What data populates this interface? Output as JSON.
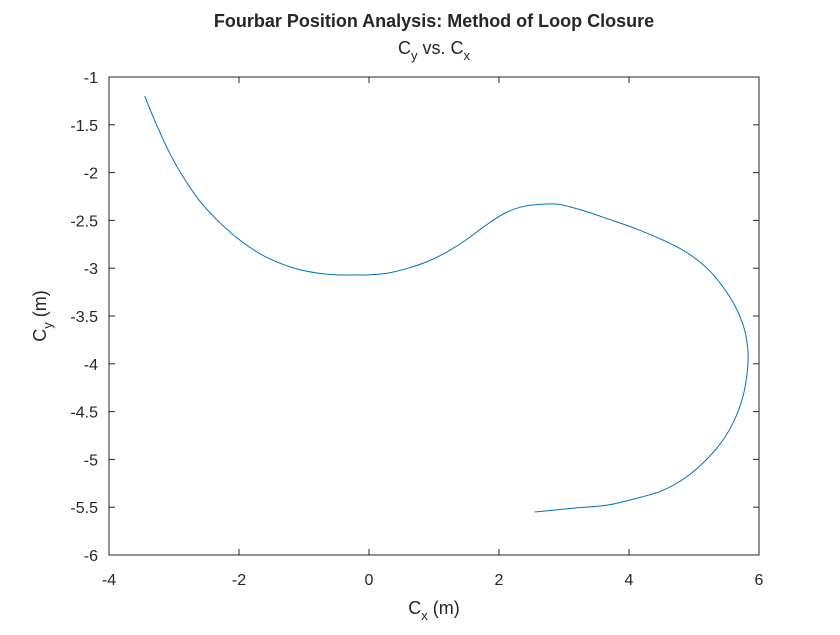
{
  "chart_data": {
    "type": "line",
    "title": "Fourbar Position Analysis: Method of Loop Closure",
    "subtitle": {
      "base_1": "C",
      "sub_1": "y",
      "mid": " vs. ",
      "base_2": "C",
      "sub_2": "x"
    },
    "xlabel": {
      "base": "C",
      "sub": "x",
      "unit": " (m)"
    },
    "ylabel": {
      "base": "C",
      "sub": "y",
      "unit": " (m)"
    },
    "xlim": [
      -4,
      6
    ],
    "ylim": [
      -6,
      -1
    ],
    "xticks": [
      -4,
      -2,
      0,
      2,
      4,
      6
    ],
    "yticks": [
      -1,
      -1.5,
      -2,
      -2.5,
      -3,
      -3.5,
      -4,
      -4.5,
      -5,
      -5.5,
      -6
    ],
    "xtick_labels": [
      "-4",
      "-2",
      "0",
      "2",
      "4",
      "6"
    ],
    "ytick_labels": [
      "-1",
      "-1.5",
      "-2",
      "-2.5",
      "-3",
      "-3.5",
      "-4",
      "-4.5",
      "-5",
      "-5.5",
      "-6"
    ],
    "grid": false,
    "line_color": "#0072BD",
    "axis_color": "#262626",
    "series": [
      {
        "x": [
          -3.45,
          -3.3,
          -3.1,
          -2.9,
          -2.6,
          -2.3,
          -2.0,
          -1.7,
          -1.4,
          -1.1,
          -0.8,
          -0.5,
          -0.2,
          0.0,
          0.3,
          0.6,
          0.9,
          1.2,
          1.5,
          1.8,
          2.1,
          2.4,
          2.7,
          2.9,
          3.1,
          3.4,
          3.7,
          4.0,
          4.3,
          4.6,
          4.9,
          5.2,
          5.45,
          5.65,
          5.78,
          5.83,
          5.82,
          5.75,
          5.6,
          5.4,
          5.15,
          4.85,
          4.5,
          4.1,
          3.65,
          3.15,
          2.55
        ],
        "y": [
          -1.2,
          -1.45,
          -1.75,
          -2.0,
          -2.3,
          -2.52,
          -2.7,
          -2.84,
          -2.94,
          -3.01,
          -3.05,
          -3.07,
          -3.07,
          -3.07,
          -3.05,
          -3.0,
          -2.93,
          -2.83,
          -2.7,
          -2.55,
          -2.42,
          -2.35,
          -2.33,
          -2.33,
          -2.36,
          -2.42,
          -2.49,
          -2.56,
          -2.64,
          -2.73,
          -2.84,
          -3.0,
          -3.2,
          -3.42,
          -3.65,
          -3.87,
          -4.08,
          -4.35,
          -4.62,
          -4.84,
          -5.03,
          -5.2,
          -5.33,
          -5.41,
          -5.48,
          -5.51,
          -5.55
        ]
      }
    ]
  }
}
